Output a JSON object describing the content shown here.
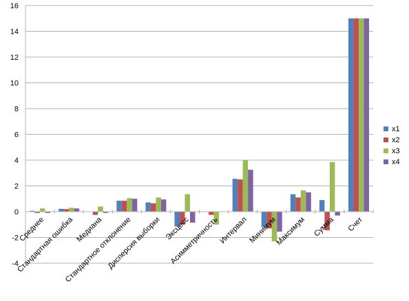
{
  "chart_data": {
    "type": "bar",
    "title": "",
    "xlabel": "",
    "ylabel": "",
    "ylim": [
      -4,
      16
    ],
    "yticks": [
      -4,
      -2,
      0,
      2,
      4,
      6,
      8,
      10,
      12,
      14,
      16
    ],
    "grid": "horizontal",
    "legend_position": "right",
    "categories": [
      "Среднее",
      "Стандартная ошибка",
      "Медиана",
      "Стандартное отклонение",
      "Дисперсия выборки",
      "Эксцесс",
      "Асимметричность",
      "Интервал",
      "Минимум",
      "Максимум",
      "Сумма",
      "Счет"
    ],
    "series": [
      {
        "name": "x1",
        "color": "#4f81bd",
        "values": [
          0.07,
          0.22,
          0.0,
          0.85,
          0.72,
          -1.15,
          0.0,
          2.55,
          -1.2,
          1.35,
          0.9,
          15
        ]
      },
      {
        "name": "x2",
        "color": "#c0504d",
        "values": [
          -0.1,
          0.2,
          -0.25,
          0.85,
          0.65,
          -1.0,
          -0.25,
          2.5,
          -1.3,
          1.1,
          -1.45,
          15
        ]
      },
      {
        "name": "x3",
        "color": "#9bbb59",
        "values": [
          0.25,
          0.3,
          0.4,
          1.05,
          1.1,
          1.35,
          -1.0,
          4.0,
          -2.3,
          1.65,
          3.85,
          15
        ]
      },
      {
        "name": "x4",
        "color": "#8064a2",
        "values": [
          -0.1,
          0.25,
          -0.1,
          1.0,
          0.95,
          -0.85,
          0.0,
          3.25,
          -1.55,
          1.5,
          -0.3,
          15
        ]
      }
    ]
  }
}
